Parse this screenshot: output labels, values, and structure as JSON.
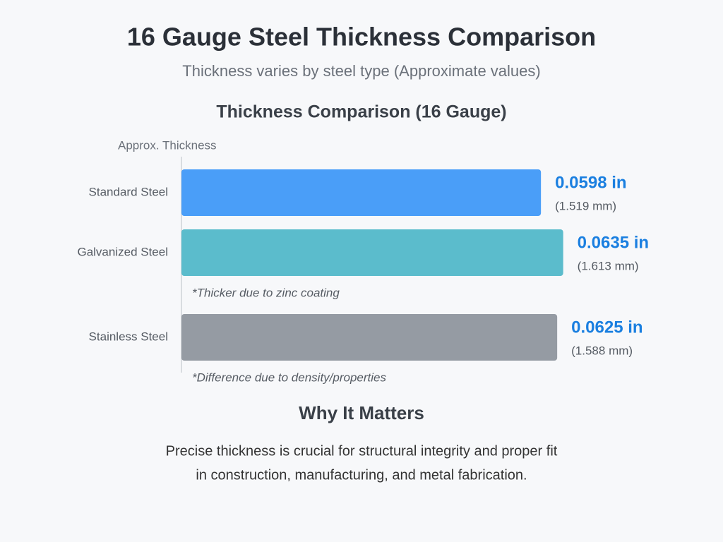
{
  "header": {
    "title": "16 Gauge Steel Thickness Comparison",
    "subtitle": "Thickness varies by steel type (Approximate values)"
  },
  "chart_data": {
    "type": "bar",
    "orientation": "horizontal",
    "title": "Thickness Comparison (16 Gauge)",
    "x_label": "Approx. Thickness",
    "categories": [
      "Standard Steel",
      "Galvanized Steel",
      "Stainless Steel"
    ],
    "values": [
      0.0598,
      0.0635,
      0.0625
    ],
    "value_labels": [
      "0.0598 in",
      "0.0635 in",
      "0.0625 in"
    ],
    "secondary_labels": [
      "(1.519 mm)",
      "(1.613 mm)",
      "(1.588 mm)"
    ],
    "notes": [
      null,
      "*Thicker due to zinc coating",
      "*Difference due to density/properties"
    ],
    "colors": [
      "#4a9ef8",
      "#5bbccc",
      "#959ba3"
    ],
    "label_color": "#1a7fe0",
    "xlim": [
      0,
      0.07
    ]
  },
  "footer": {
    "heading": "Why It Matters",
    "lines": [
      "Precise thickness is crucial for structural integrity and proper fit",
      "in construction, manufacturing, and metal fabrication."
    ]
  }
}
